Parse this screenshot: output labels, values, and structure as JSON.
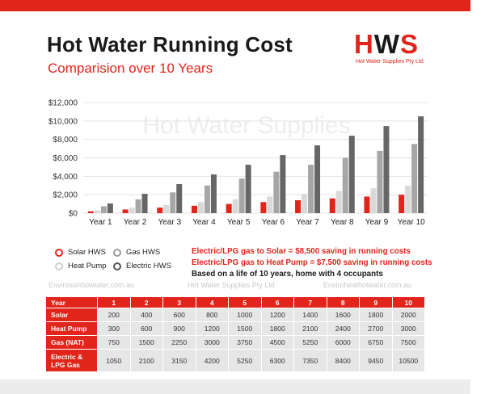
{
  "header": {
    "title": "Hot Water Running Cost",
    "subtitle": "Comparision over 10 Years"
  },
  "logo": {
    "letters_h": "H",
    "letters_w": "W",
    "letters_s": "S",
    "tagline": "Hot Water Supplies Pty Ltd"
  },
  "colors": {
    "accent_red": "#e1251b",
    "solar": "#e1251b",
    "heat_pump": "#d9d9d9",
    "gas": "#a6a6a6",
    "electric": "#666666"
  },
  "chart_data": {
    "type": "bar",
    "watermark": "Hot Water Supplies",
    "categories": [
      "Year 1",
      "Year 2",
      "Year 3",
      "Year 4",
      "Year 5",
      "Year 6",
      "Year 7",
      "Year 8",
      "Year 9",
      "Year 10"
    ],
    "series": [
      {
        "name": "Solar HWS",
        "values": [
          200,
          400,
          600,
          800,
          1000,
          1200,
          1400,
          1600,
          1800,
          2000
        ]
      },
      {
        "name": "Heat Pump",
        "values": [
          300,
          600,
          900,
          1200,
          1500,
          1800,
          2100,
          2400,
          2700,
          3000
        ]
      },
      {
        "name": "Gas HWS",
        "values": [
          750,
          1500,
          2250,
          3000,
          3750,
          4500,
          5250,
          6000,
          6750,
          7500
        ]
      },
      {
        "name": "Electric HWS",
        "values": [
          1050,
          2100,
          3150,
          4200,
          5250,
          6300,
          7350,
          8400,
          9450,
          10500
        ]
      }
    ],
    "yticks": [
      "$0",
      "$2,000",
      "$4,000",
      "$6,000",
      "$8,000",
      "$10,000",
      "$12,000"
    ],
    "ylim": [
      0,
      12000
    ],
    "grid": true
  },
  "legend": {
    "items": [
      {
        "label": "Solar HWS"
      },
      {
        "label": "Gas HWS"
      },
      {
        "label": "Heat Pump"
      },
      {
        "label": "Electric HWS"
      }
    ]
  },
  "notes": {
    "line1": "Electric/LPG gas to Solar = $8,500 saving in running costs",
    "line2": "Electric/LPG gas to Heat Pump = $7,500 saving in running costs",
    "line3": "Based on a life of 10 years, home with 4 occupants"
  },
  "watermarks": {
    "left": "Envirosunhotwater.com.au",
    "center": "Hot Water Supplies Pty Ltd",
    "right": "Enviroheathotwater.com.au"
  },
  "table": {
    "header": [
      "Year",
      "1",
      "2",
      "3",
      "4",
      "5",
      "6",
      "7",
      "8",
      "9",
      "10"
    ],
    "rows": [
      {
        "label": "Solar",
        "values": [
          "200",
          "400",
          "600",
          "800",
          "1000",
          "1200",
          "1400",
          "1600",
          "1800",
          "2000"
        ]
      },
      {
        "label": "Heat Pump",
        "values": [
          "300",
          "600",
          "900",
          "1200",
          "1500",
          "1800",
          "2100",
          "2400",
          "2700",
          "3000"
        ]
      },
      {
        "label": "Gas (NAT)",
        "values": [
          "750",
          "1500",
          "2250",
          "3000",
          "3750",
          "4500",
          "5250",
          "6000",
          "6750",
          "7500"
        ]
      },
      {
        "label_line1": "Electric &",
        "label_line2": "LPG Gas",
        "values": [
          "1050",
          "2100",
          "3150",
          "4200",
          "5250",
          "6300",
          "7350",
          "8400",
          "9450",
          "10500"
        ]
      }
    ]
  }
}
